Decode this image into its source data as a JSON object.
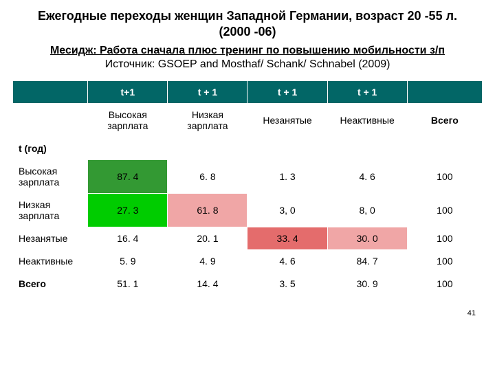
{
  "title_line1": "Ежегодные переходы женщин Западной Германии, возраст 20 -55 л.",
  "title_line2": "(2000 -06)",
  "subtitle": "Месидж: Работа сначала плюс тренинг по повышению мобильности з/п",
  "source": "Источник: GSOEP and Mosthaf/ Schank/ Schnabel (2009)",
  "header_row1": [
    "",
    "t+1",
    "t + 1",
    "t + 1",
    "t + 1",
    ""
  ],
  "header_row2": [
    "",
    "Высокая зарплата",
    "Низкая зарплата",
    "Незанятые",
    "Неактивные",
    "Всего"
  ],
  "row_group_label": "t (год)",
  "rows": [
    {
      "label": "Высокая зарплата",
      "cells": [
        "87. 4",
        "6. 8",
        "1. 3",
        "4. 6",
        "100"
      ]
    },
    {
      "label": "Низкая зарплата",
      "cells": [
        "27. 3",
        "61. 8",
        "3, 0",
        "8, 0",
        "100"
      ]
    },
    {
      "label": "Незанятые",
      "cells": [
        "16. 4",
        "20. 1",
        "33. 4",
        "30. 0",
        "100"
      ]
    },
    {
      "label": "Неактивные",
      "cells": [
        "5. 9",
        "4. 9",
        "4. 6",
        "84. 7",
        "100"
      ]
    },
    {
      "label": "Всего",
      "cells": [
        "51. 1",
        "14. 4",
        "3. 5",
        "30. 9",
        "100"
      ]
    }
  ],
  "highlight_colors": {
    "green_dark": "#339933",
    "green_bright": "#00cc00",
    "red_soft": "#e46c6c",
    "red_pale": "#f0a6a6"
  },
  "cell_highlights": [
    {
      "row": 0,
      "col": 0,
      "color": "green_dark"
    },
    {
      "row": 1,
      "col": 0,
      "color": "green_bright"
    },
    {
      "row": 1,
      "col": 1,
      "color": "red_pale"
    },
    {
      "row": 2,
      "col": 2,
      "color": "red_soft"
    },
    {
      "row": 2,
      "col": 3,
      "color": "red_pale"
    }
  ],
  "slide_number": "41",
  "col_widths_pct": [
    16,
    17,
    17,
    17,
    17,
    16
  ]
}
